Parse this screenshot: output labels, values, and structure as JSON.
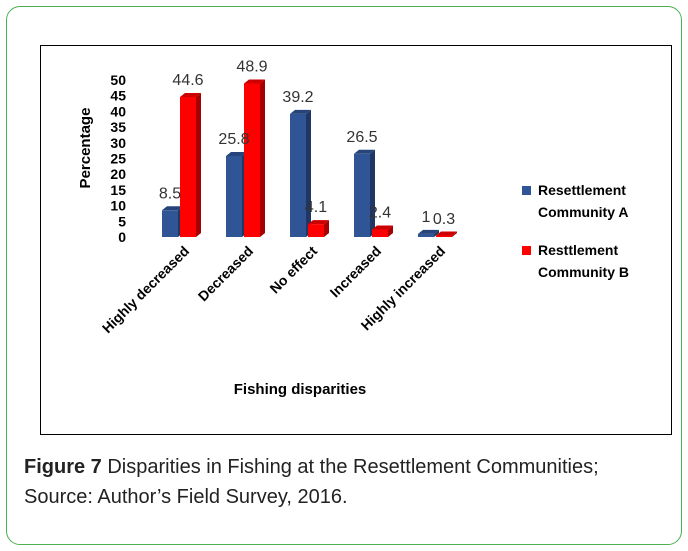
{
  "chart_data": {
    "type": "bar",
    "categories": [
      "Highly decreased",
      "Decreased",
      "No effect",
      "Increased",
      "Highly increased"
    ],
    "series": [
      {
        "name": "Resettlement Community A",
        "color": "#2f5597",
        "values": [
          8.5,
          25.8,
          39.2,
          26.5,
          1
        ]
      },
      {
        "name": "Resttlement Community B",
        "color": "#ff0000",
        "values": [
          44.6,
          48.9,
          4.1,
          2.4,
          0.3
        ]
      }
    ],
    "data_labels": [
      [
        "8.5",
        "25.8",
        "39.2",
        "26.5",
        "1"
      ],
      [
        "44.6",
        "48.9",
        "4.1",
        "2.4",
        "0.3"
      ]
    ],
    "xlabel": "Fishing disparities",
    "ylabel": "Percentage",
    "yticks": [
      "0",
      "5",
      "10",
      "15",
      "20",
      "25",
      "30",
      "35",
      "40",
      "45",
      "50"
    ],
    "ylim": [
      0,
      50
    ],
    "legend_position": "right"
  },
  "legend": {
    "a_line1": "Resettlement",
    "a_line2": "Community A",
    "b_line1": "Resttlement",
    "b_line2": "Community B"
  },
  "caption": {
    "label": "Figure 7",
    "text": " Disparities in Fishing at the Resettlement Communities; Source: Author’s Field Survey, 2016."
  }
}
